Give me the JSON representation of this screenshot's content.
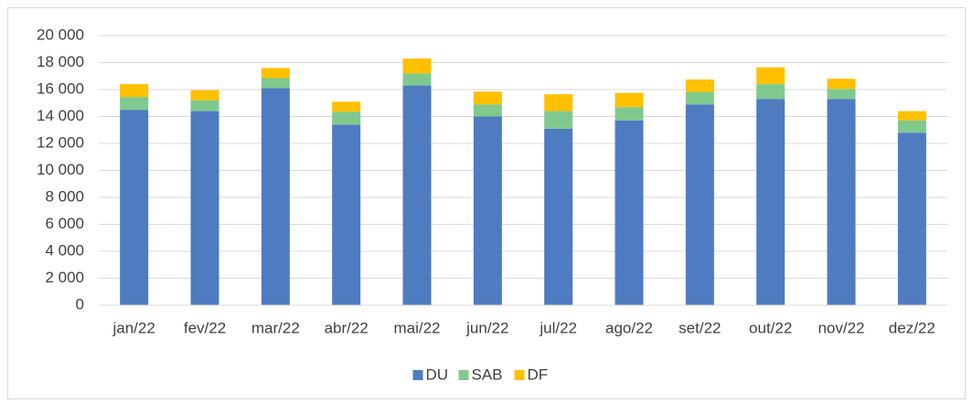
{
  "chart_data": {
    "type": "stacked_bar",
    "categories": [
      "jan/22",
      "fev/22",
      "mar/22",
      "abr/22",
      "mai/22",
      "jun/22",
      "jul/22",
      "ago/22",
      "set/22",
      "out/22",
      "nov/22",
      "dez/22"
    ],
    "series": [
      {
        "name": "DU",
        "color": "#4f7bc1",
        "values": [
          14500,
          14400,
          16100,
          13400,
          16300,
          14000,
          13100,
          13700,
          14900,
          15300,
          15300,
          12800
        ]
      },
      {
        "name": "SAB",
        "color": "#7fc98f",
        "values": [
          950,
          800,
          750,
          950,
          900,
          900,
          1300,
          1000,
          900,
          1100,
          750,
          900
        ]
      },
      {
        "name": "DF",
        "color": "#ffc000",
        "values": [
          950,
          750,
          750,
          750,
          1100,
          950,
          1250,
          1050,
          950,
          1250,
          750,
          700
        ]
      }
    ],
    "ylim": [
      0,
      20000
    ],
    "yticks": [
      0,
      {
        "value": 2000,
        "label": "2 000"
      },
      {
        "value": 4000,
        "label": "4 000"
      },
      {
        "value": 6000,
        "label": "6 000"
      },
      {
        "value": 8000,
        "label": "8 000"
      },
      {
        "value": 10000,
        "label": "10 000"
      },
      {
        "value": 12000,
        "label": "12 000"
      },
      {
        "value": 14000,
        "label": "14 000"
      },
      {
        "value": 16000,
        "label": "16 000"
      },
      {
        "value": 18000,
        "label": "18 000"
      },
      {
        "value": 20000,
        "label": "20 000"
      }
    ],
    "grid": true,
    "legend": "bottom"
  }
}
